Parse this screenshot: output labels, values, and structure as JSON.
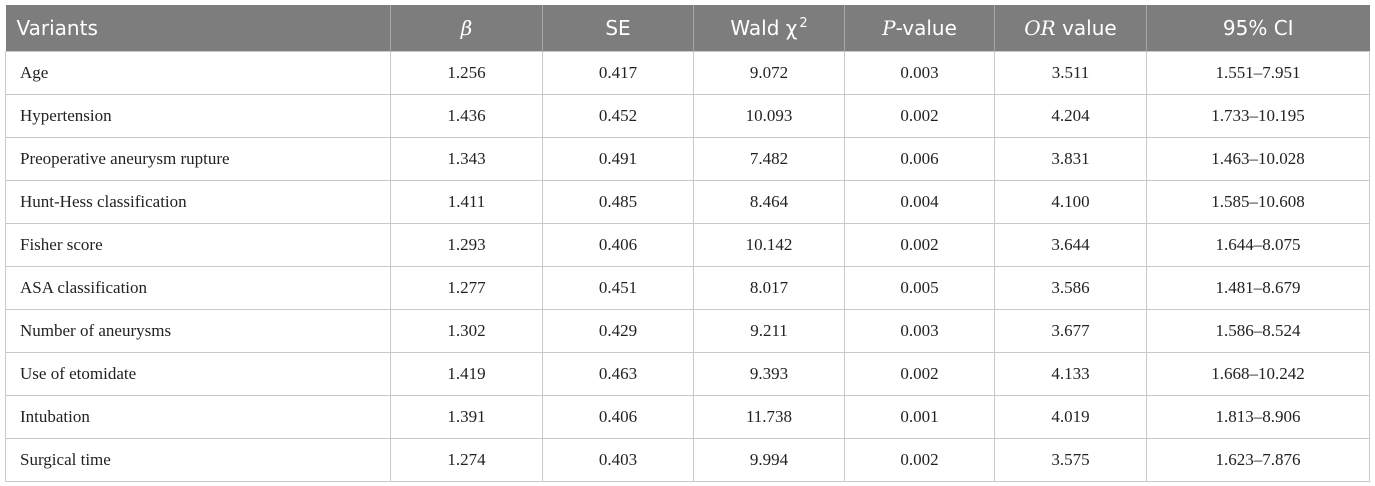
{
  "table": {
    "headers": [
      {
        "label": "Variants"
      },
      {
        "label": "β"
      },
      {
        "label": "SE"
      },
      {
        "label": "Wald χ",
        "sup": "2"
      },
      {
        "pre_italic": "P",
        "label": "-value"
      },
      {
        "pre_italic": "OR",
        "label": " value"
      },
      {
        "label": "95% CI"
      }
    ],
    "rows": [
      [
        "Age",
        "1.256",
        "0.417",
        "9.072",
        "0.003",
        "3.511",
        "1.551–7.951"
      ],
      [
        "Hypertension",
        "1.436",
        "0.452",
        "10.093",
        "0.002",
        "4.204",
        "1.733–10.195"
      ],
      [
        "Preoperative aneurysm rupture",
        "1.343",
        "0.491",
        "7.482",
        "0.006",
        "3.831",
        "1.463–10.028"
      ],
      [
        "Hunt-Hess classification",
        "1.411",
        "0.485",
        "8.464",
        "0.004",
        "4.100",
        "1.585–10.608"
      ],
      [
        "Fisher score",
        "1.293",
        "0.406",
        "10.142",
        "0.002",
        "3.644",
        "1.644–8.075"
      ],
      [
        "ASA classification",
        "1.277",
        "0.451",
        "8.017",
        "0.005",
        "3.586",
        "1.481–8.679"
      ],
      [
        "Number of aneurysms",
        "1.302",
        "0.429",
        "9.211",
        "0.003",
        "3.677",
        "1.586–8.524"
      ],
      [
        "Use of etomidate",
        "1.419",
        "0.463",
        "9.393",
        "0.002",
        "4.133",
        "1.668–10.242"
      ],
      [
        "Intubation",
        "1.391",
        "0.406",
        "11.738",
        "0.001",
        "4.019",
        "1.813–8.906"
      ],
      [
        "Surgical time",
        "1.274",
        "0.403",
        "9.994",
        "0.002",
        "3.575",
        "1.623–7.876"
      ]
    ]
  },
  "colors": {
    "header_background": "#7d7d7d",
    "header_text": "#ffffff",
    "grid_line": "#c9c9c9",
    "body_text": "#222222"
  }
}
